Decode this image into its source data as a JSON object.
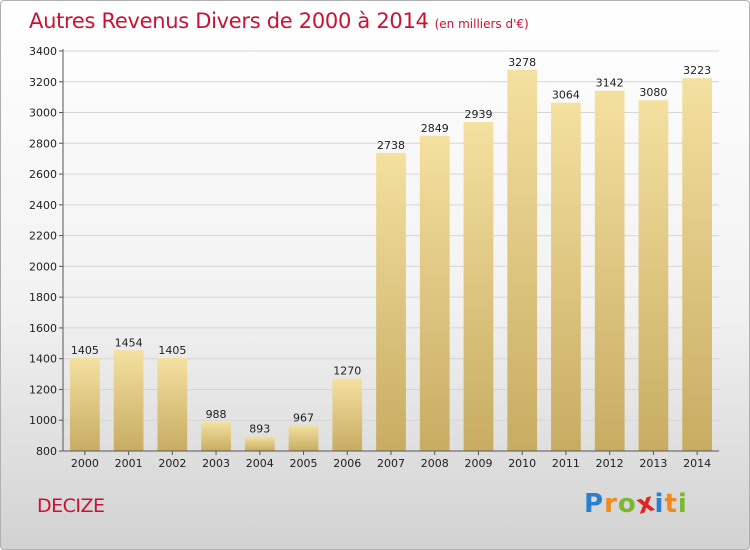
{
  "title": "Autres Revenus Divers de 2000 à 2014",
  "subtitle": "(en milliers d'€)",
  "city": "DECIZE",
  "brand": {
    "letters": [
      {
        "char": "P",
        "color": "#2b7fd0"
      },
      {
        "char": "r",
        "color": "#f08a1c"
      },
      {
        "char": "o",
        "color": "#7cb82f"
      },
      {
        "char": "x",
        "color": "#e02424"
      },
      {
        "char": "i",
        "color": "#2b7fd0"
      },
      {
        "char": "t",
        "color": "#f08a1c"
      },
      {
        "char": "i",
        "color": "#7cb82f"
      }
    ]
  },
  "colors": {
    "title": "#cc1133",
    "bar_top": "#f4e0a0",
    "bar_bottom": "#c8ac62"
  },
  "chart_data": {
    "type": "bar",
    "title": "Autres Revenus Divers de 2000 à 2014",
    "subtitle": "(en milliers d'€)",
    "categories": [
      "2000",
      "2001",
      "2002",
      "2003",
      "2004",
      "2005",
      "2006",
      "2007",
      "2008",
      "2009",
      "2010",
      "2011",
      "2012",
      "2013",
      "2014"
    ],
    "values": [
      1405,
      1454,
      1405,
      988,
      893,
      967,
      1270,
      2738,
      2849,
      2939,
      3278,
      3064,
      3142,
      3080,
      3223
    ],
    "ylim": [
      800,
      3400
    ],
    "yticks": [
      800,
      1000,
      1200,
      1400,
      1600,
      1800,
      2000,
      2200,
      2400,
      2600,
      2800,
      3000,
      3200,
      3400
    ],
    "grid": true,
    "data_labels": true
  }
}
